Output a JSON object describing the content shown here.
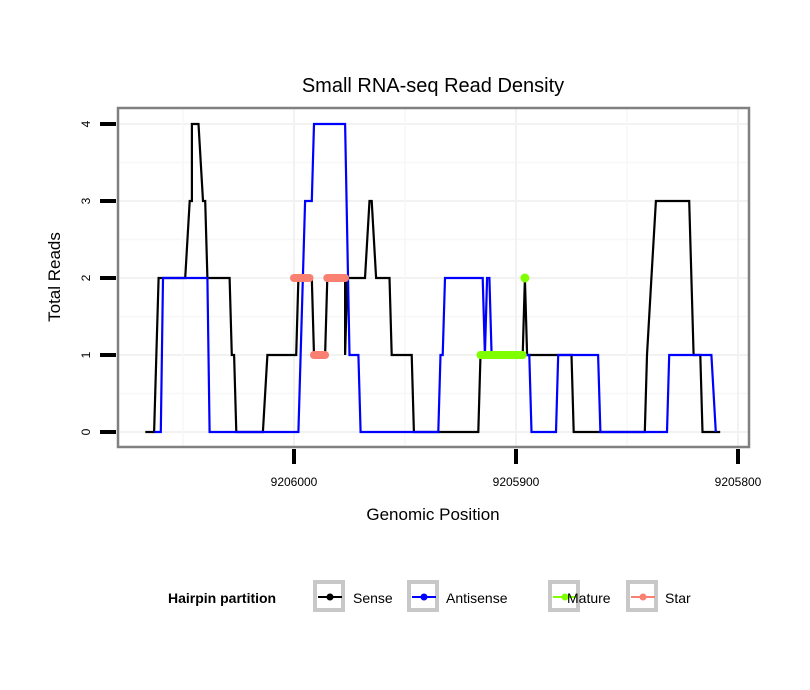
{
  "chart_data": {
    "type": "line",
    "title": "Small RNA-seq Read Density",
    "xlabel": "Genomic Position",
    "ylabel": "Total Reads",
    "x_reversed": true,
    "xlim": [
      9206080,
      9205795
    ],
    "ylim": [
      -0.2,
      4.2
    ],
    "x_ticks": [
      9206000,
      9205900,
      9205800
    ],
    "x_tick_labels": [
      "9206000",
      "9205900",
      "9205800"
    ],
    "y_ticks": [
      0,
      1,
      2,
      3,
      4
    ],
    "y_tick_labels": [
      "0",
      "1",
      "2",
      "3",
      "4"
    ],
    "grid": true,
    "legend": {
      "title": "Hairpin partition",
      "position": "bottom",
      "entries": [
        {
          "name": "Sense",
          "color": "#000000"
        },
        {
          "name": "Antisense",
          "color": "#0000FF"
        },
        {
          "name": "Mature",
          "color": "#7FFF00"
        },
        {
          "name": "Star",
          "color": "#FA8072"
        }
      ]
    },
    "series": [
      {
        "name": "Sense",
        "color": "#000000",
        "points": [
          [
            9206067,
            0
          ],
          [
            9206063,
            0
          ],
          [
            9206061,
            2
          ],
          [
            9206049,
            2
          ],
          [
            9206047,
            3
          ],
          [
            9206046,
            3
          ],
          [
            9206046,
            4
          ],
          [
            9206043,
            4
          ],
          [
            9206041,
            3
          ],
          [
            9206040,
            3
          ],
          [
            9206039,
            2
          ],
          [
            9206029,
            2
          ],
          [
            9206028,
            1
          ],
          [
            9206027,
            1
          ],
          [
            9206026,
            0
          ],
          [
            9206014,
            0
          ],
          [
            9206012,
            1
          ],
          [
            9205999,
            1
          ],
          [
            9205998,
            2
          ],
          [
            9205992,
            2
          ],
          [
            9205991,
            1
          ],
          [
            9205986,
            1
          ],
          [
            9205985,
            2
          ],
          [
            9205977,
            2
          ],
          [
            9205977,
            1
          ],
          [
            9205976,
            2
          ],
          [
            9205968,
            2
          ],
          [
            9205966,
            3
          ],
          [
            9205965,
            3
          ],
          [
            9205963,
            2
          ],
          [
            9205957,
            2
          ],
          [
            9205956,
            1
          ],
          [
            9205947,
            1
          ],
          [
            9205946,
            0
          ],
          [
            9205917,
            0
          ],
          [
            9205916,
            1
          ],
          [
            9205897,
            1
          ],
          [
            9205896,
            2
          ],
          [
            9205895,
            1
          ],
          [
            9205875,
            1
          ],
          [
            9205874,
            0
          ],
          [
            9205842,
            0
          ],
          [
            9205841,
            1
          ],
          [
            9205839,
            2
          ],
          [
            9205837,
            3
          ],
          [
            9205822,
            3
          ],
          [
            9205820,
            1
          ],
          [
            9205817,
            1
          ],
          [
            9205816,
            0
          ],
          [
            9205808,
            0
          ]
        ]
      },
      {
        "name": "Antisense",
        "color": "#0000FF",
        "points": [
          [
            9206063,
            0
          ],
          [
            9206060,
            0
          ],
          [
            9206059,
            2
          ],
          [
            9206039,
            2
          ],
          [
            9206038,
            0
          ],
          [
            9205998,
            0
          ],
          [
            9205995,
            3
          ],
          [
            9205992,
            3
          ],
          [
            9205991,
            4
          ],
          [
            9205977,
            4
          ],
          [
            9205975,
            1
          ],
          [
            9205971,
            1
          ],
          [
            9205970,
            0
          ],
          [
            9205935,
            0
          ],
          [
            9205934,
            1
          ],
          [
            9205933,
            1
          ],
          [
            9205932,
            2
          ],
          [
            9205915,
            2
          ],
          [
            9205914,
            1
          ],
          [
            9205913,
            2
          ],
          [
            9205912,
            2
          ],
          [
            9205911,
            1
          ],
          [
            9205894,
            1
          ],
          [
            9205893,
            0
          ],
          [
            9205882,
            0
          ],
          [
            9205881,
            1
          ],
          [
            9205863,
            1
          ],
          [
            9205862,
            0
          ],
          [
            9205832,
            0
          ],
          [
            9205831,
            1
          ],
          [
            9205812,
            1
          ],
          [
            9205810,
            0
          ]
        ]
      },
      {
        "name": "Mature",
        "color": "#7FFF00",
        "segments": [
          {
            "x_start": 9205916,
            "x_end": 9205897,
            "y": 1
          }
        ],
        "points": [
          [
            9205896,
            2
          ]
        ]
      },
      {
        "name": "Star",
        "color": "#FA8072",
        "segments": [
          {
            "x_start": 9206000,
            "x_end": 9205993,
            "y": 2
          },
          {
            "x_start": 9205991,
            "x_end": 9205986,
            "y": 1
          },
          {
            "x_start": 9205985,
            "x_end": 9205977,
            "y": 2
          }
        ]
      }
    ]
  }
}
